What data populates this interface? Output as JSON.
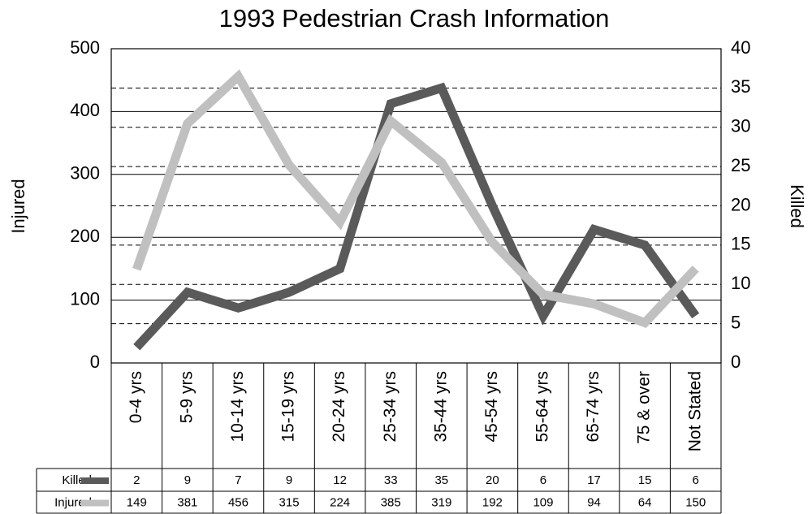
{
  "chart_data": {
    "type": "line",
    "title": "1993 Pedestrian Crash Information",
    "ylabel": "Injured",
    "y2label": "Killed",
    "categories": [
      "0-4 yrs",
      "5-9 yrs",
      "10-14 yrs",
      "15-19 yrs",
      "20-24 yrs",
      "25-34 yrs",
      "35-44 yrs",
      "45-54 yrs",
      "55-64 yrs",
      "65-74 yrs",
      "75 & over",
      "Not Stated"
    ],
    "series": [
      {
        "name": "Killed",
        "color": "#5a5a5a",
        "axis": "y2",
        "values": [
          2,
          9,
          7,
          9,
          12,
          33,
          35,
          20,
          6,
          17,
          15,
          6
        ]
      },
      {
        "name": "Injured",
        "color": "#c0c0c0",
        "values": [
          149,
          381,
          456,
          315,
          224,
          385,
          319,
          192,
          109,
          94,
          64,
          150
        ]
      }
    ],
    "ylim": [
      0,
      500
    ],
    "yticks": [
      0,
      100,
      200,
      300,
      400,
      500
    ],
    "y2lim": [
      0,
      40
    ],
    "y2ticks": [
      0,
      5,
      10,
      15,
      20,
      25,
      30,
      35,
      40
    ],
    "grid": true
  }
}
